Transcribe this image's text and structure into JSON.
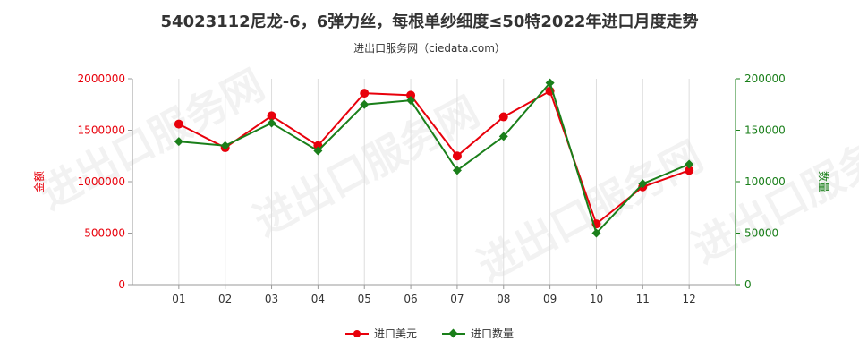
{
  "chart_data": {
    "type": "line",
    "title": "54023112尼龙-6，6弹力丝，每根单纱细度≤50特2022年进口月度走势",
    "subtitle": "进出口服务网（ciedata.com）",
    "categories": [
      "01",
      "02",
      "03",
      "04",
      "05",
      "06",
      "07",
      "08",
      "09",
      "10",
      "11",
      "12"
    ],
    "series": [
      {
        "name": "进口美元",
        "axis": "left",
        "color": "#e8000b",
        "values": [
          1560000,
          1330000,
          1640000,
          1350000,
          1860000,
          1840000,
          1250000,
          1630000,
          1880000,
          590000,
          950000,
          1110000
        ]
      },
      {
        "name": "进口数量",
        "axis": "right",
        "color": "#1a7f1a",
        "values": [
          139000,
          135000,
          157000,
          130000,
          175000,
          179000,
          111000,
          144000,
          196000,
          50000,
          98000,
          117000
        ]
      }
    ],
    "y_left": {
      "label": "金额",
      "min": 0,
      "max": 2000000,
      "ticks": [
        "0",
        "500000",
        "1000000",
        "1500000",
        "2000000"
      ],
      "color": "#e8000b"
    },
    "y_right": {
      "label": "数量",
      "min": 0,
      "max": 200000,
      "ticks": [
        "0",
        "50000",
        "100000",
        "150000",
        "200000"
      ],
      "color": "#1a7f1a"
    },
    "grid": "vertical",
    "legend_position": "bottom"
  },
  "watermark": "进出口服务网"
}
